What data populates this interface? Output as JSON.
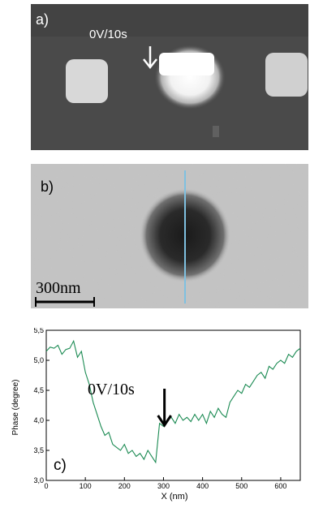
{
  "panel_a": {
    "label": "a)",
    "annotation": "0V/10s"
  },
  "panel_b": {
    "label": "b)",
    "scalebar_label": "300nm"
  },
  "panel_c": {
    "label": "c)",
    "annotation": "0V/10s",
    "colors": {
      "line": "#1a8a52",
      "arrow": "#000000"
    }
  },
  "chart_data": {
    "type": "line",
    "xlabel": "X (nm)",
    "ylabel": "Phase (degree)",
    "xlim": [
      0,
      650
    ],
    "ylim": [
      3.0,
      5.5
    ],
    "xticks": [
      0,
      100,
      200,
      300,
      400,
      500,
      600
    ],
    "yticks": [
      "3,0",
      "3,5",
      "4,0",
      "4,5",
      "5,0",
      "5,5"
    ],
    "ytick_values": [
      3.0,
      3.5,
      4.0,
      4.5,
      5.0,
      5.5
    ],
    "series": [
      {
        "x": [
          0,
          10,
          20,
          30,
          40,
          50,
          60,
          70,
          80,
          90,
          100,
          110,
          120,
          130,
          140,
          150,
          160,
          170,
          180,
          190,
          200,
          210,
          220,
          230,
          240,
          250,
          260,
          270,
          280,
          290,
          300,
          310,
          320,
          330,
          340,
          350,
          360,
          370,
          380,
          390,
          400,
          410,
          420,
          430,
          440,
          450,
          460,
          470,
          480,
          490,
          500,
          510,
          520,
          530,
          540,
          550,
          560,
          570,
          580,
          590,
          600,
          610,
          620,
          630,
          640,
          650
        ],
        "y": [
          5.15,
          5.22,
          5.2,
          5.25,
          5.1,
          5.18,
          5.2,
          5.32,
          5.05,
          5.15,
          4.8,
          4.6,
          4.3,
          4.1,
          3.9,
          3.75,
          3.8,
          3.6,
          3.55,
          3.5,
          3.6,
          3.45,
          3.5,
          3.4,
          3.45,
          3.35,
          3.5,
          3.4,
          3.3,
          3.95,
          3.9,
          4.0,
          4.05,
          3.95,
          4.1,
          4.0,
          4.05,
          3.98,
          4.1,
          4.0,
          4.1,
          3.95,
          4.15,
          4.05,
          4.2,
          4.1,
          4.05,
          4.3,
          4.4,
          4.5,
          4.45,
          4.6,
          4.55,
          4.65,
          4.75,
          4.8,
          4.7,
          4.9,
          4.85,
          4.95,
          5.0,
          4.95,
          5.1,
          5.05,
          5.15,
          5.2
        ]
      }
    ],
    "annotation_x": 290,
    "grid": false
  }
}
